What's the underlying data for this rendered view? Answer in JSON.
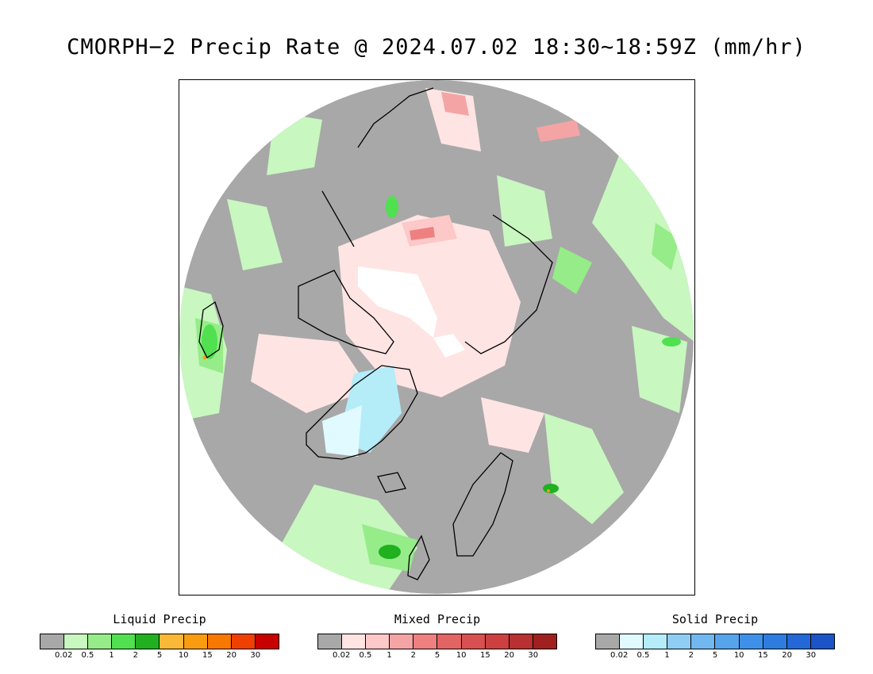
{
  "title": "CMORPH−2 Precip Rate @ 2024.07.02 18:30~18:59Z (mm/hr)",
  "colors": {
    "background_no_precip": "#a8a8a8",
    "ice_cap_white": "#ffffff",
    "coastline": "#000000"
  },
  "legends": [
    {
      "label": "Liquid Precip",
      "colors": [
        "#a8a8a8",
        "#c8f7c0",
        "#96ec88",
        "#50e050",
        "#20b020",
        "#f9b838",
        "#f99c10",
        "#f97800",
        "#f04000",
        "#c80000"
      ],
      "ticks": [
        "0.02",
        "0.5",
        "1",
        "2",
        "5",
        "10",
        "15",
        "20",
        "30"
      ]
    },
    {
      "label": "Mixed Precip",
      "colors": [
        "#a8a8a8",
        "#ffe4e4",
        "#fcc8c8",
        "#f4a4a4",
        "#ee8080",
        "#e26464",
        "#d85050",
        "#cc4040",
        "#b83030",
        "#a02020"
      ],
      "ticks": [
        "0.02",
        "0.5",
        "1",
        "2",
        "5",
        "10",
        "15",
        "20",
        "30"
      ]
    },
    {
      "label": "Solid Precip",
      "colors": [
        "#a8a8a8",
        "#e0faff",
        "#b4ecf8",
        "#90cdf4",
        "#72b8f0",
        "#56a4ec",
        "#3e90e8",
        "#2e7ce0",
        "#2468d8",
        "#1c54c8"
      ],
      "ticks": [
        "0.02",
        "0.5",
        "1",
        "2",
        "5",
        "10",
        "15",
        "20",
        "30"
      ]
    }
  ]
}
